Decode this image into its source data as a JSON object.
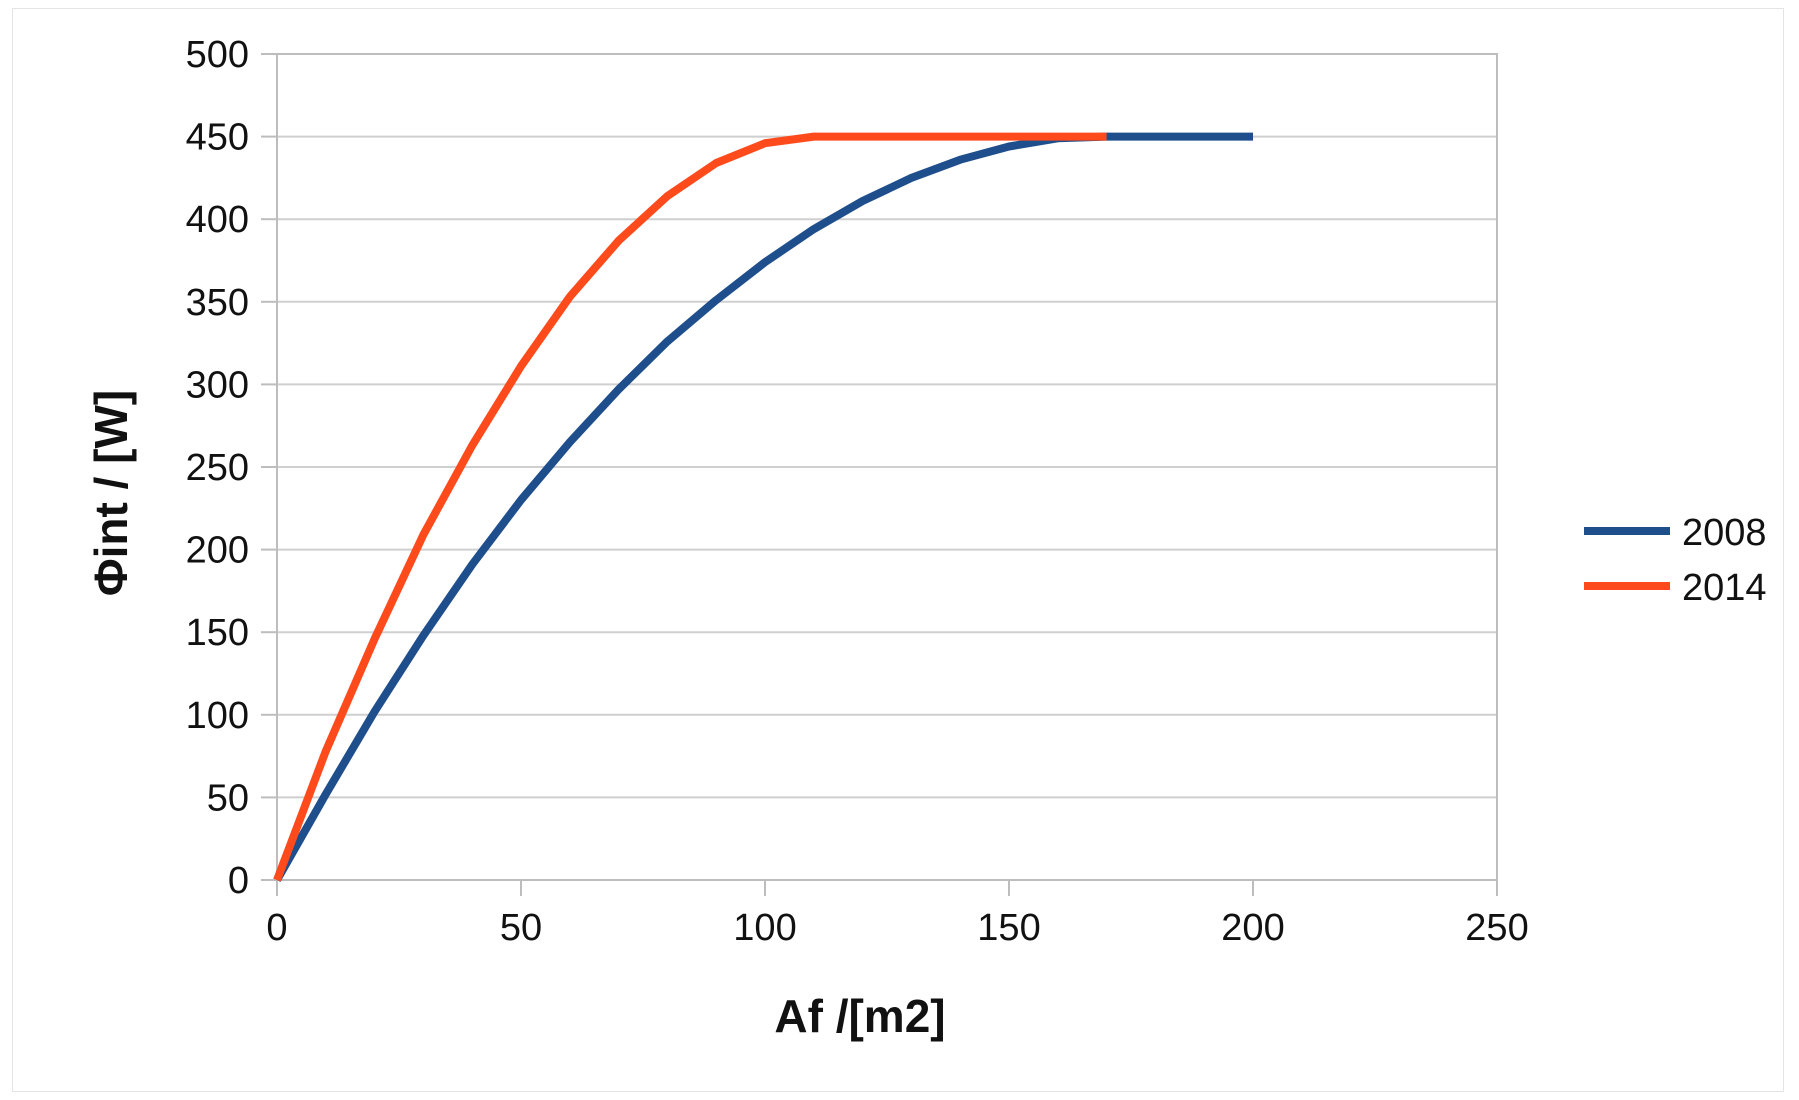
{
  "chart_data": {
    "type": "line",
    "title": "",
    "xlabel": "Af /[m2]",
    "ylabel": "Φint / [W]",
    "xlim": [
      0,
      250
    ],
    "ylim": [
      0,
      500
    ],
    "x_ticks": [
      0,
      50,
      100,
      150,
      200,
      250
    ],
    "y_ticks": [
      0,
      50,
      100,
      150,
      200,
      250,
      300,
      350,
      400,
      450,
      500
    ],
    "x_tick_labels": [
      "0",
      "50",
      "100",
      "150",
      "200",
      "250"
    ],
    "y_tick_labels": [
      "0",
      "50",
      "100",
      "150",
      "200",
      "250",
      "300",
      "350",
      "400",
      "450",
      "500"
    ],
    "grid": true,
    "legend_position": "right",
    "series": [
      {
        "name": "2008",
        "color": "#1f4e8c",
        "x": [
          0,
          10,
          20,
          30,
          40,
          50,
          60,
          70,
          80,
          90,
          100,
          110,
          120,
          130,
          140,
          150,
          160,
          170,
          180,
          190,
          200
        ],
        "y": [
          0,
          52,
          102,
          148,
          191,
          230,
          265,
          297,
          326,
          351,
          374,
          394,
          411,
          425,
          436,
          444,
          449,
          450,
          450,
          450,
          450
        ]
      },
      {
        "name": "2014",
        "color": "#ff4a1c",
        "x": [
          0,
          10,
          20,
          30,
          40,
          50,
          60,
          70,
          80,
          90,
          100,
          110,
          120,
          130,
          140,
          150,
          160,
          170
        ],
        "y": [
          0,
          78,
          146,
          209,
          263,
          311,
          353,
          387,
          414,
          434,
          446,
          450,
          450,
          450,
          450,
          450,
          450,
          450
        ]
      }
    ]
  }
}
